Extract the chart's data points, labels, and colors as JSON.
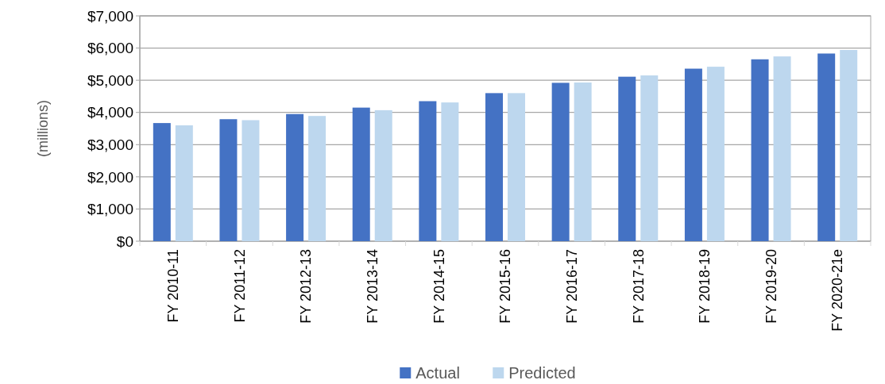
{
  "chart_data": {
    "type": "bar",
    "ylabel": "(millions)",
    "categories": [
      "FY 2010-11",
      "FY 2011-12",
      "FY 2012-13",
      "FY 2013-14",
      "FY 2014-15",
      "FY 2015-16",
      "FY 2016-17",
      "FY 2017-18",
      "FY 2018-19",
      "FY 2019-20",
      "FY 2020-21e"
    ],
    "series": [
      {
        "name": "Actual",
        "color": "#4472c4",
        "values": [
          3670,
          3790,
          3950,
          4150,
          4350,
          4600,
          4920,
          5110,
          5360,
          5650,
          5830
        ]
      },
      {
        "name": "Predicted",
        "color": "#bdd7ee",
        "values": [
          3600,
          3760,
          3890,
          4070,
          4310,
          4600,
          4930,
          5150,
          5420,
          5740,
          5940
        ]
      }
    ],
    "ylim": [
      0,
      7000
    ],
    "yticks": [
      {
        "value": 0,
        "label": "$0"
      },
      {
        "value": 1000,
        "label": "$1,000"
      },
      {
        "value": 2000,
        "label": "$2,000"
      },
      {
        "value": 3000,
        "label": "$3,000"
      },
      {
        "value": 4000,
        "label": "$4,000"
      },
      {
        "value": 5000,
        "label": "$5,000"
      },
      {
        "value": 6000,
        "label": "$6,000"
      },
      {
        "value": 7000,
        "label": "$7,000"
      }
    ],
    "grid": "y",
    "legend": "bottom"
  }
}
